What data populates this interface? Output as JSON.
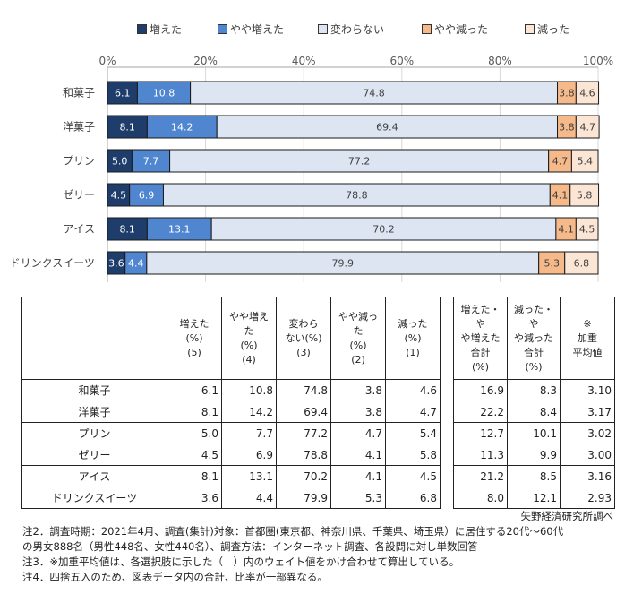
{
  "chart_data": {
    "type": "bar",
    "orientation": "horizontal-stacked-100",
    "title": "",
    "xlabel": "",
    "ylabel": "",
    "xlim": [
      0,
      100
    ],
    "x_ticks": [
      "0%",
      "20%",
      "40%",
      "60%",
      "80%",
      "100%"
    ],
    "grid": true,
    "legend_position": "top",
    "categories": [
      "和菓子",
      "洋菓子",
      "プリン",
      "ゼリー",
      "アイス",
      "ドリンクスイーツ"
    ],
    "series": [
      {
        "name": "増えた",
        "color": "#1f3d6b",
        "label_color": "#ffffff",
        "values": [
          6.1,
          8.1,
          5.0,
          4.5,
          8.1,
          3.6
        ]
      },
      {
        "name": "やや増えた",
        "color": "#4f86cf",
        "label_color": "#ffffff",
        "values": [
          10.8,
          14.2,
          7.7,
          6.9,
          13.1,
          4.4
        ]
      },
      {
        "name": "変わらない",
        "color": "#dce5f1",
        "label_color": "#404040",
        "values": [
          74.8,
          69.4,
          77.2,
          78.8,
          70.2,
          79.9
        ]
      },
      {
        "name": "やや減った",
        "color": "#f5b98a",
        "label_color": "#404040",
        "values": [
          3.8,
          3.8,
          4.7,
          4.1,
          4.1,
          5.3
        ]
      },
      {
        "name": "減った",
        "color": "#fbe6d6",
        "label_color": "#404040",
        "values": [
          4.6,
          4.7,
          5.4,
          5.8,
          4.5,
          6.8
        ]
      }
    ]
  },
  "table": {
    "headers": [
      [
        "増えた",
        "(%)",
        "(5)"
      ],
      [
        "やや増えた",
        "(%)",
        "(4)"
      ],
      [
        "変わら",
        "ない(%)",
        "(3)"
      ],
      [
        "やや減った",
        "(%)",
        "(2)"
      ],
      [
        "減った",
        "(%)",
        "(1)"
      ]
    ],
    "headers2": [
      [
        "増えた・や",
        "や増えた",
        "合計",
        "(%)"
      ],
      [
        "減った・や",
        "や減った",
        "合計",
        "(%)"
      ],
      [
        "※",
        "加重",
        "平均値"
      ]
    ],
    "rows": [
      {
        "label": "和菓子",
        "values": [
          "6.1",
          "10.8",
          "74.8",
          "3.8",
          "4.6"
        ],
        "values2": [
          "16.9",
          "8.3",
          "3.10"
        ]
      },
      {
        "label": "洋菓子",
        "values": [
          "8.1",
          "14.2",
          "69.4",
          "3.8",
          "4.7"
        ],
        "values2": [
          "22.2",
          "8.4",
          "3.17"
        ]
      },
      {
        "label": "プリン",
        "values": [
          "5.0",
          "7.7",
          "77.2",
          "4.7",
          "5.4"
        ],
        "values2": [
          "12.7",
          "10.1",
          "3.02"
        ]
      },
      {
        "label": "ゼリー",
        "values": [
          "4.5",
          "6.9",
          "78.8",
          "4.1",
          "5.8"
        ],
        "values2": [
          "11.3",
          "9.9",
          "3.00"
        ]
      },
      {
        "label": "アイス",
        "values": [
          "8.1",
          "13.1",
          "70.2",
          "4.1",
          "4.5"
        ],
        "values2": [
          "21.2",
          "8.5",
          "3.16"
        ]
      },
      {
        "label": "ドリンクスイーツ",
        "values": [
          "3.6",
          "4.4",
          "79.9",
          "5.3",
          "6.8"
        ],
        "values2": [
          "8.0",
          "12.1",
          "2.93"
        ]
      }
    ]
  },
  "source": "矢野経済研究所調べ",
  "notes": [
    "注2．調査時期：2021年4月、調査(集計)対象：首都圏(東京都、神奈川県、千葉県、埼玉県）に居住する20代～60代",
    "の男女888名（男性448名、女性440名）、調査方法：インターネット調査、各設問に対し単数回答",
    "注3．※加重平均値は、各選択肢に示した（　）内のウェイト値をかけ合わせて算出している。",
    "注4．四捨五入のため、図表データ内の合計、比率が一部異なる。"
  ]
}
